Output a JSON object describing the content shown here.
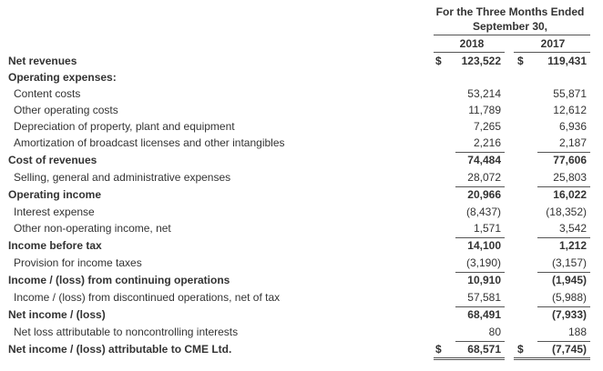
{
  "header": {
    "period_line1": "For the Three Months Ended",
    "period_line2": "September 30,",
    "year1": "2018",
    "year2": "2017"
  },
  "currency_symbol": "$",
  "rows": [
    {
      "label": "Net revenues",
      "v2018": "123,522",
      "v2017": "119,431",
      "bold": true,
      "indent": false,
      "dollar": true
    },
    {
      "label": "Operating expenses:",
      "v2018": "",
      "v2017": "",
      "bold": true,
      "indent": false,
      "dollar": false
    },
    {
      "label": "Content costs",
      "v2018": "53,214",
      "v2017": "55,871",
      "bold": false,
      "indent": true,
      "dollar": false
    },
    {
      "label": "Other operating costs",
      "v2018": "11,789",
      "v2017": "12,612",
      "bold": false,
      "indent": true,
      "dollar": false
    },
    {
      "label": "Depreciation of property, plant and equipment",
      "v2018": "7,265",
      "v2017": "6,936",
      "bold": false,
      "indent": true,
      "dollar": false
    },
    {
      "label": "Amortization of broadcast licenses and other intangibles",
      "v2018": "2,216",
      "v2017": "2,187",
      "bold": false,
      "indent": true,
      "dollar": false
    },
    {
      "label": "Cost of revenues",
      "v2018": "74,484",
      "v2017": "77,606",
      "bold": true,
      "indent": false,
      "dollar": false
    },
    {
      "label": "Selling, general and administrative expenses",
      "v2018": "28,072",
      "v2017": "25,803",
      "bold": false,
      "indent": true,
      "dollar": false
    },
    {
      "label": "Operating income",
      "v2018": "20,966",
      "v2017": "16,022",
      "bold": true,
      "indent": false,
      "dollar": false
    },
    {
      "label": "Interest expense",
      "v2018": "(8,437)",
      "v2017": "(18,352)",
      "bold": false,
      "indent": true,
      "dollar": false
    },
    {
      "label": "Other non-operating income, net",
      "v2018": "1,571",
      "v2017": "3,542",
      "bold": false,
      "indent": true,
      "dollar": false
    },
    {
      "label": "Income before tax",
      "v2018": "14,100",
      "v2017": "1,212",
      "bold": true,
      "indent": false,
      "dollar": false
    },
    {
      "label": "Provision for income taxes",
      "v2018": "(3,190)",
      "v2017": "(3,157)",
      "bold": false,
      "indent": true,
      "dollar": false
    },
    {
      "label": "Income / (loss) from continuing operations",
      "v2018": "10,910",
      "v2017": "(1,945)",
      "bold": true,
      "indent": false,
      "dollar": false
    },
    {
      "label": "Income / (loss) from discontinued operations, net of tax",
      "v2018": "57,581",
      "v2017": "(5,988)",
      "bold": false,
      "indent": true,
      "dollar": false
    },
    {
      "label": "Net income / (loss)",
      "v2018": "68,491",
      "v2017": "(7,933)",
      "bold": true,
      "indent": false,
      "dollar": false
    },
    {
      "label": "Net loss attributable to noncontrolling interests",
      "v2018": "80",
      "v2017": "188",
      "bold": false,
      "indent": true,
      "dollar": false
    },
    {
      "label": "Net income / (loss) attributable to CME Ltd.",
      "v2018": "68,571",
      "v2017": "(7,745)",
      "bold": true,
      "indent": false,
      "dollar": true
    }
  ]
}
